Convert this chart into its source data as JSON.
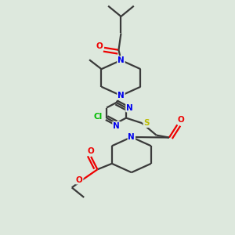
{
  "background_color": "#dde8dd",
  "bond_color": "#3a3a3a",
  "nitrogen_color": "#0000ee",
  "oxygen_color": "#ee0000",
  "sulfur_color": "#bbbb00",
  "chlorine_color": "#00bb00",
  "line_width": 1.6,
  "figsize": [
    3.0,
    3.0
  ],
  "dpi": 100,
  "xlim": [
    0,
    10
  ],
  "ylim": [
    0,
    10
  ]
}
